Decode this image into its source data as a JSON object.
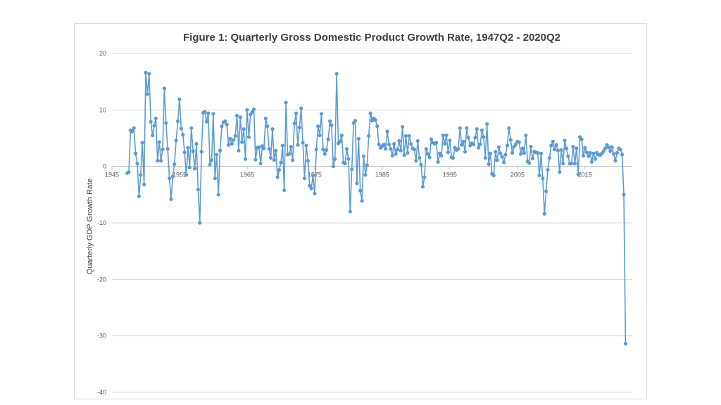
{
  "chart_data": {
    "type": "line",
    "title": "Figure 1: Quarterly Gross Domestic Product Growth Rate, 1947Q2 - 2020Q2",
    "xlabel": "",
    "ylabel": "Quarterly GDP Growth Rate",
    "xlim": [
      1945,
      2022
    ],
    "ylim": [
      -40,
      20
    ],
    "x_ticks": [
      1945,
      1955,
      1965,
      1975,
      1985,
      1995,
      2005,
      2015
    ],
    "y_ticks": [
      20,
      10,
      0,
      -10,
      -20,
      -30,
      -40
    ],
    "grid": true,
    "series": [
      {
        "name": "Quarterly GDP Growth Rate",
        "color": "#5b9bd5",
        "start_year": 1947.25,
        "step": 0.25,
        "values": [
          -1.2,
          -1.0,
          6.4,
          6.2,
          6.8,
          2.3,
          0.5,
          -5.3,
          -1.5,
          4.2,
          -3.2,
          16.6,
          12.8,
          16.4,
          7.9,
          5.5,
          7.2,
          8.5,
          1.0,
          4.3,
          1.0,
          3.0,
          13.8,
          7.7,
          3.1,
          -2.1,
          -5.8,
          -1.8,
          0.4,
          4.6,
          8.0,
          11.9,
          6.7,
          5.6,
          2.5,
          -1.5,
          3.3,
          -0.2,
          6.8,
          2.7,
          -0.4,
          4.0,
          -4.1,
          -10.0,
          2.6,
          9.5,
          9.7,
          7.9,
          9.4,
          0.3,
          1.1,
          9.3,
          -2.1,
          2.1,
          -5.0,
          2.8,
          7.1,
          7.8,
          8.0,
          7.4,
          3.8,
          4.9,
          4.0,
          4.7,
          5.4,
          9.0,
          2.8,
          8.7,
          4.3,
          6.6,
          1.3,
          10.0,
          5.2,
          9.2,
          9.6,
          10.1,
          1.2,
          3.3,
          3.4,
          0.5,
          3.6,
          3.2,
          8.5,
          7.1,
          3.1,
          1.5,
          6.6,
          1.1,
          2.8,
          -1.9,
          -0.6,
          0.7,
          3.7,
          -4.2,
          11.3,
          2.1,
          2.2,
          3.5,
          1.1,
          7.6,
          9.4,
          3.8,
          6.9,
          10.3,
          4.2,
          -2.1,
          3.7,
          1.0,
          -3.4,
          -3.9,
          -1.6,
          -4.8,
          3.0,
          7.1,
          5.5,
          9.3,
          3.0,
          2.2,
          2.9,
          4.8,
          8.0,
          7.3,
          0.0,
          1.3,
          16.4,
          4.1,
          4.4,
          5.5,
          0.7,
          0.5,
          3.1,
          1.3,
          -8.0,
          -0.5,
          7.7,
          8.1,
          -3.0,
          4.9,
          -4.3,
          -6.1,
          1.8,
          -1.5,
          0.2,
          5.4,
          9.4,
          8.1,
          8.5,
          8.2,
          7.1,
          3.9,
          3.3,
          3.6,
          3.9,
          3.1,
          6.2,
          3.9,
          3.1,
          1.9,
          4.0,
          2.2,
          3.0,
          4.5,
          2.8,
          7.0,
          2.0,
          5.4,
          2.4,
          5.4,
          4.0,
          3.2,
          3.0,
          1.0,
          4.5,
          1.5,
          0.3,
          -3.6,
          -1.9,
          3.1,
          2.2,
          1.6,
          4.8,
          4.2,
          4.0,
          4.2,
          0.8,
          2.3,
          1.9,
          5.5,
          4.0,
          5.5,
          2.5,
          4.6,
          1.6,
          1.5,
          3.3,
          2.9,
          3.1,
          6.8,
          3.8,
          4.4,
          2.6,
          6.8,
          5.1,
          3.7,
          4.1,
          3.9,
          5.1,
          6.6,
          3.3,
          3.9,
          6.4,
          5.2,
          1.5,
          7.5,
          0.4,
          2.3,
          -1.3,
          -1.6,
          2.6,
          1.1,
          3.4,
          2.3,
          1.7,
          0.7,
          2.1,
          3.7,
          6.8,
          4.7,
          2.4,
          3.5,
          3.9,
          4.4,
          4.3,
          2.2,
          3.2,
          2.4,
          5.5,
          0.9,
          0.6,
          3.5,
          1.4,
          2.6,
          2.5,
          2.4,
          -1.6,
          2.3,
          -2.1,
          -8.4,
          -4.4,
          -0.6,
          1.5,
          3.7,
          4.4,
          3.0,
          3.8,
          2.8,
          -1.0,
          2.9,
          0.5,
          4.6,
          3.2,
          1.8,
          0.5,
          0.5,
          3.5,
          0.5,
          3.2,
          -1.4,
          5.2,
          4.8,
          1.9,
          3.3,
          2.5,
          1.8,
          2.4,
          0.8,
          2.3,
          1.3,
          2.4,
          2.1,
          2.0,
          2.3,
          2.7,
          3.2,
          3.8,
          3.4,
          2.7,
          3.4,
          2.2,
          1.0,
          2.4,
          3.2,
          3.0,
          2.1,
          -5.0,
          -31.4
        ]
      }
    ]
  }
}
